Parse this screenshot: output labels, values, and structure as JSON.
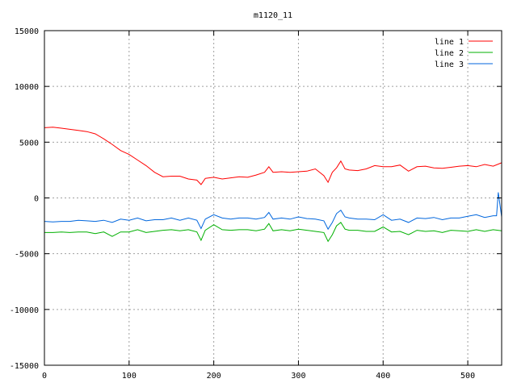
{
  "chart_data": {
    "type": "line",
    "title": "m1120_11",
    "xlabel": "",
    "ylabel": "",
    "xlim": [
      0,
      540
    ],
    "ylim": [
      -15000,
      15000
    ],
    "xticks": [
      0,
      100,
      200,
      300,
      400,
      500
    ],
    "yticks": [
      -15000,
      -10000,
      -5000,
      0,
      5000,
      10000,
      15000
    ],
    "grid": true,
    "legend_position": "top-right",
    "series": [
      {
        "name": "line 1",
        "color": "#ff0000",
        "x": [
          0,
          10,
          20,
          30,
          40,
          50,
          60,
          70,
          80,
          90,
          100,
          110,
          120,
          130,
          140,
          150,
          160,
          170,
          180,
          185,
          190,
          200,
          210,
          220,
          230,
          240,
          250,
          260,
          265,
          270,
          280,
          290,
          300,
          310,
          320,
          330,
          335,
          340,
          345,
          350,
          355,
          360,
          370,
          380,
          390,
          400,
          410,
          420,
          430,
          440,
          450,
          460,
          470,
          480,
          490,
          500,
          510,
          520,
          530,
          540
        ],
        "values": [
          6300,
          6350,
          6250,
          6150,
          6050,
          5950,
          5750,
          5300,
          4800,
          4250,
          3900,
          3400,
          2900,
          2300,
          1900,
          1950,
          1950,
          1700,
          1600,
          1200,
          1750,
          1850,
          1700,
          1800,
          1900,
          1850,
          2050,
          2300,
          2800,
          2300,
          2350,
          2300,
          2350,
          2400,
          2600,
          2000,
          1400,
          2300,
          2700,
          3300,
          2600,
          2500,
          2450,
          2600,
          2900,
          2800,
          2800,
          2950,
          2400,
          2800,
          2850,
          2700,
          2650,
          2750,
          2850,
          2900,
          2800,
          3000,
          2850,
          3150
        ]
      },
      {
        "name": "line 2",
        "color": "#00b000",
        "x": [
          0,
          10,
          20,
          30,
          40,
          50,
          60,
          70,
          80,
          90,
          100,
          110,
          120,
          130,
          140,
          150,
          160,
          170,
          180,
          185,
          190,
          200,
          210,
          220,
          230,
          240,
          250,
          260,
          265,
          270,
          280,
          290,
          300,
          310,
          320,
          330,
          335,
          340,
          345,
          350,
          355,
          360,
          370,
          380,
          390,
          400,
          410,
          420,
          430,
          440,
          450,
          460,
          470,
          480,
          490,
          500,
          510,
          520,
          530,
          540
        ],
        "values": [
          -3100,
          -3100,
          -3050,
          -3100,
          -3050,
          -3050,
          -3200,
          -3050,
          -3450,
          -3050,
          -3050,
          -2850,
          -3100,
          -3000,
          -2900,
          -2850,
          -2950,
          -2850,
          -3050,
          -3800,
          -2900,
          -2400,
          -2850,
          -2900,
          -2850,
          -2850,
          -2950,
          -2800,
          -2300,
          -2950,
          -2850,
          -2950,
          -2800,
          -2900,
          -3000,
          -3100,
          -3900,
          -3300,
          -2500,
          -2200,
          -2800,
          -2900,
          -2900,
          -3000,
          -3000,
          -2600,
          -3050,
          -3000,
          -3300,
          -2900,
          -3000,
          -2950,
          -3100,
          -2900,
          -2950,
          -3000,
          -2850,
          -3000,
          -2850,
          -2950
        ]
      },
      {
        "name": "line 3",
        "color": "#0066dd",
        "x": [
          0,
          10,
          20,
          30,
          40,
          50,
          60,
          70,
          80,
          90,
          100,
          110,
          120,
          130,
          140,
          150,
          160,
          170,
          180,
          185,
          190,
          200,
          210,
          220,
          230,
          240,
          250,
          260,
          265,
          270,
          280,
          290,
          300,
          310,
          320,
          330,
          335,
          340,
          345,
          350,
          355,
          360,
          370,
          380,
          390,
          400,
          410,
          420,
          430,
          440,
          450,
          460,
          470,
          480,
          490,
          500,
          510,
          520,
          530,
          534,
          536,
          540
        ],
        "values": [
          -2100,
          -2150,
          -2100,
          -2100,
          -2000,
          -2050,
          -2100,
          -2000,
          -2200,
          -1900,
          -2000,
          -1800,
          -2050,
          -1950,
          -1950,
          -1800,
          -2000,
          -1800,
          -2000,
          -2750,
          -1900,
          -1500,
          -1800,
          -1900,
          -1800,
          -1800,
          -1900,
          -1750,
          -1300,
          -1900,
          -1800,
          -1900,
          -1700,
          -1850,
          -1900,
          -2050,
          -2800,
          -2200,
          -1400,
          -1100,
          -1700,
          -1800,
          -1900,
          -1900,
          -1950,
          -1500,
          -2000,
          -1900,
          -2200,
          -1800,
          -1850,
          -1750,
          -1950,
          -1800,
          -1800,
          -1650,
          -1500,
          -1750,
          -1600,
          -1600,
          500,
          -1700
        ]
      }
    ]
  }
}
